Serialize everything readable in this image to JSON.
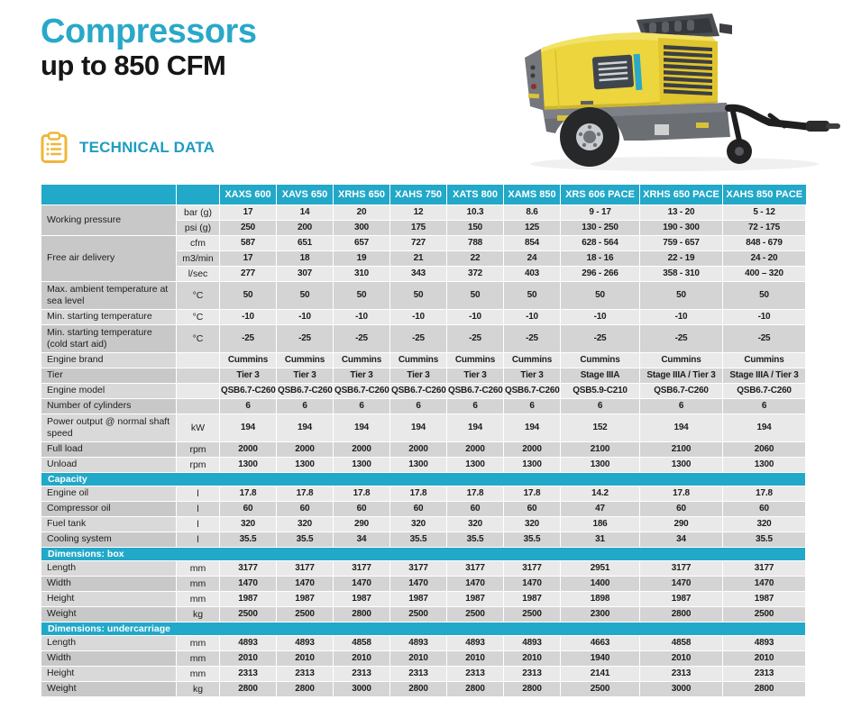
{
  "page": {
    "title": "Compressors",
    "subtitle": "up to 850 CFM",
    "section_label": "TECHNICAL DATA"
  },
  "colors": {
    "accent_teal": "#22a8c8",
    "title_cyan": "#29a8c8",
    "icon_yellow": "#efb73a",
    "machine_yellow": "#ecd53d",
    "row_light": "#e9e9e9",
    "row_dark": "#d4d4d4"
  },
  "icons": {
    "clipboard": "clipboard-icon"
  },
  "table": {
    "columns": [
      "XAXS 600",
      "XAVS 650",
      "XRHS 650",
      "XAHS 750",
      "XATS 800",
      "XAMS 850",
      "XRS 606 PACE",
      "XRHS 650 PACE",
      "XAHS 850 PACE"
    ],
    "sections": [
      {
        "title": "",
        "groups": [
          {
            "label": "Working pressure",
            "rows": [
              {
                "unit": "bar (g)",
                "values": [
                  "17",
                  "14",
                  "20",
                  "12",
                  "10.3",
                  "8.6",
                  "9 - 17",
                  "13 - 20",
                  "5 - 12"
                ]
              },
              {
                "unit": "psi (g)",
                "values": [
                  "250",
                  "200",
                  "300",
                  "175",
                  "150",
                  "125",
                  "130 - 250",
                  "190 - 300",
                  "72 - 175"
                ]
              }
            ]
          },
          {
            "label": "Free air delivery",
            "rows": [
              {
                "unit": "cfm",
                "values": [
                  "587",
                  "651",
                  "657",
                  "727",
                  "788",
                  "854",
                  "628 - 564",
                  "759 - 657",
                  "848 - 679"
                ]
              },
              {
                "unit": "m3/min",
                "values": [
                  "17",
                  "18",
                  "19",
                  "21",
                  "22",
                  "24",
                  "18 - 16",
                  "22 - 19",
                  "24 - 20"
                ]
              },
              {
                "unit": "l/sec",
                "values": [
                  "277",
                  "307",
                  "310",
                  "343",
                  "372",
                  "403",
                  "296 - 266",
                  "358 - 310",
                  "400 – 320"
                ]
              }
            ]
          },
          {
            "label": "Max. ambient temperature at sea level",
            "tall": true,
            "rows": [
              {
                "unit": "°C",
                "values": [
                  "50",
                  "50",
                  "50",
                  "50",
                  "50",
                  "50",
                  "50",
                  "50",
                  "50"
                ]
              }
            ]
          },
          {
            "label": "Min. starting temperature",
            "rows": [
              {
                "unit": "°C",
                "values": [
                  "-10",
                  "-10",
                  "-10",
                  "-10",
                  "-10",
                  "-10",
                  "-10",
                  "-10",
                  "-10"
                ]
              }
            ]
          },
          {
            "label": "Min. starting temperature (cold start aid)",
            "tall": true,
            "rows": [
              {
                "unit": "°C",
                "values": [
                  "-25",
                  "-25",
                  "-25",
                  "-25",
                  "-25",
                  "-25",
                  "-25",
                  "-25",
                  "-25"
                ]
              }
            ]
          },
          {
            "label": "Engine brand",
            "rows": [
              {
                "unit": "",
                "values": [
                  "Cummins",
                  "Cummins",
                  "Cummins",
                  "Cummins",
                  "Cummins",
                  "Cummins",
                  "Cummins",
                  "Cummins",
                  "Cummins"
                ]
              }
            ]
          },
          {
            "label": "Tier",
            "rows": [
              {
                "unit": "",
                "values": [
                  "Tier 3",
                  "Tier 3",
                  "Tier 3",
                  "Tier 3",
                  "Tier 3",
                  "Tier 3",
                  "Stage IIIA",
                  "Stage IIIA / Tier 3",
                  "Stage IIIA / Tier 3"
                ]
              }
            ]
          },
          {
            "label": "Engine model",
            "rows": [
              {
                "unit": "",
                "values": [
                  "QSB6.7-C260",
                  "QSB6.7-C260",
                  "QSB6.7-C260",
                  "QSB6.7-C260",
                  "QSB6.7-C260",
                  "QSB6.7-C260",
                  "QSB5.9-C210",
                  "QSB6.7-C260",
                  "QSB6.7-C260"
                ]
              }
            ]
          },
          {
            "label": "Number of cylinders",
            "rows": [
              {
                "unit": "",
                "values": [
                  "6",
                  "6",
                  "6",
                  "6",
                  "6",
                  "6",
                  "6",
                  "6",
                  "6"
                ]
              }
            ]
          },
          {
            "label": "Power output @ normal shaft speed",
            "tall": true,
            "rows": [
              {
                "unit": "kW",
                "values": [
                  "194",
                  "194",
                  "194",
                  "194",
                  "194",
                  "194",
                  "152",
                  "194",
                  "194"
                ]
              }
            ]
          },
          {
            "label": "Full load",
            "rows": [
              {
                "unit": "rpm",
                "values": [
                  "2000",
                  "2000",
                  "2000",
                  "2000",
                  "2000",
                  "2000",
                  "2100",
                  "2100",
                  "2060"
                ]
              }
            ]
          },
          {
            "label": "Unload",
            "rows": [
              {
                "unit": "rpm",
                "values": [
                  "1300",
                  "1300",
                  "1300",
                  "1300",
                  "1300",
                  "1300",
                  "1300",
                  "1300",
                  "1300"
                ]
              }
            ]
          }
        ]
      },
      {
        "title": "Capacity",
        "groups": [
          {
            "label": "Engine oil",
            "rows": [
              {
                "unit": "l",
                "values": [
                  "17.8",
                  "17.8",
                  "17.8",
                  "17.8",
                  "17.8",
                  "17.8",
                  "14.2",
                  "17.8",
                  "17.8"
                ]
              }
            ]
          },
          {
            "label": "Compressor oil",
            "rows": [
              {
                "unit": "l",
                "values": [
                  "60",
                  "60",
                  "60",
                  "60",
                  "60",
                  "60",
                  "47",
                  "60",
                  "60"
                ]
              }
            ]
          },
          {
            "label": "Fuel tank",
            "rows": [
              {
                "unit": "l",
                "values": [
                  "320",
                  "320",
                  "290",
                  "320",
                  "320",
                  "320",
                  "186",
                  "290",
                  "320"
                ]
              }
            ]
          },
          {
            "label": "Cooling system",
            "rows": [
              {
                "unit": "l",
                "values": [
                  "35.5",
                  "35.5",
                  "34",
                  "35.5",
                  "35.5",
                  "35.5",
                  "31",
                  "34",
                  "35.5"
                ]
              }
            ]
          }
        ]
      },
      {
        "title": "Dimensions: box",
        "groups": [
          {
            "label": "Length",
            "rows": [
              {
                "unit": "mm",
                "values": [
                  "3177",
                  "3177",
                  "3177",
                  "3177",
                  "3177",
                  "3177",
                  "2951",
                  "3177",
                  "3177"
                ]
              }
            ]
          },
          {
            "label": "Width",
            "rows": [
              {
                "unit": "mm",
                "values": [
                  "1470",
                  "1470",
                  "1470",
                  "1470",
                  "1470",
                  "1470",
                  "1400",
                  "1470",
                  "1470"
                ]
              }
            ]
          },
          {
            "label": "Height",
            "rows": [
              {
                "unit": "mm",
                "values": [
                  "1987",
                  "1987",
                  "1987",
                  "1987",
                  "1987",
                  "1987",
                  "1898",
                  "1987",
                  "1987"
                ]
              }
            ]
          },
          {
            "label": "Weight",
            "rows": [
              {
                "unit": "kg",
                "values": [
                  "2500",
                  "2500",
                  "2800",
                  "2500",
                  "2500",
                  "2500",
                  "2300",
                  "2800",
                  "2500"
                ]
              }
            ]
          }
        ]
      },
      {
        "title": "Dimensions: undercarriage",
        "groups": [
          {
            "label": "Length",
            "rows": [
              {
                "unit": "mm",
                "values": [
                  "4893",
                  "4893",
                  "4858",
                  "4893",
                  "4893",
                  "4893",
                  "4663",
                  "4858",
                  "4893"
                ]
              }
            ]
          },
          {
            "label": "Width",
            "rows": [
              {
                "unit": "mm",
                "values": [
                  "2010",
                  "2010",
                  "2010",
                  "2010",
                  "2010",
                  "2010",
                  "1940",
                  "2010",
                  "2010"
                ]
              }
            ]
          },
          {
            "label": "Height",
            "rows": [
              {
                "unit": "mm",
                "values": [
                  "2313",
                  "2313",
                  "2313",
                  "2313",
                  "2313",
                  "2313",
                  "2141",
                  "2313",
                  "2313"
                ]
              }
            ]
          },
          {
            "label": "Weight",
            "rows": [
              {
                "unit": "kg",
                "values": [
                  "2800",
                  "2800",
                  "3000",
                  "2800",
                  "2800",
                  "2800",
                  "2500",
                  "3000",
                  "2800"
                ]
              }
            ]
          }
        ]
      }
    ]
  }
}
